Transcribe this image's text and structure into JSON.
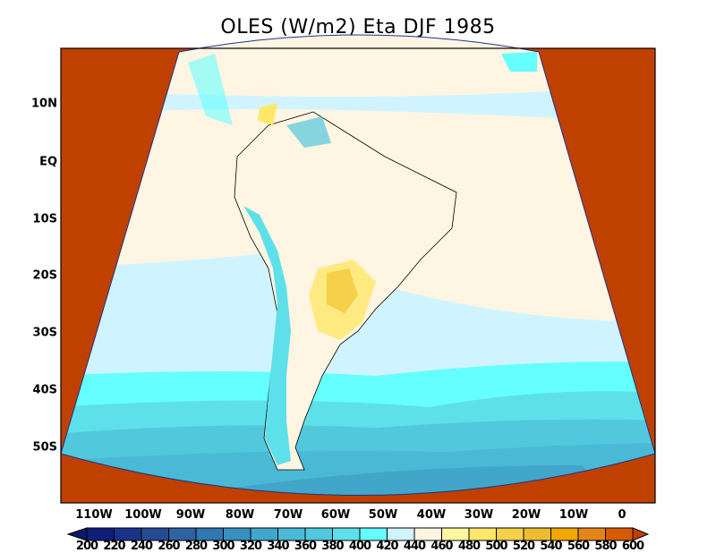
{
  "title": "OLES (W/m2) Eta DJF 1985",
  "lat_labels": [
    "10N",
    "EQ",
    "10S",
    "20S",
    "30S",
    "40S",
    "50S"
  ],
  "lon_labels": [
    "110W",
    "100W",
    "90W",
    "80W",
    "70W",
    "60W",
    "50W",
    "40W",
    "30W",
    "20W",
    "10W",
    "0"
  ],
  "colorbar": {
    "labels": [
      "200",
      "220",
      "240",
      "260",
      "280",
      "300",
      "320",
      "340",
      "360",
      "380",
      "400",
      "420",
      "440",
      "460",
      "480",
      "500",
      "520",
      "540",
      "560",
      "580",
      "600"
    ],
    "colors": [
      "#0a1a6e",
      "#0f1f78",
      "#1a3388",
      "#264b94",
      "#2e62a0",
      "#2f78b0",
      "#3890c0",
      "#41a6c9",
      "#4ab9d6",
      "#52c8dd",
      "#5ee0ea",
      "#66ffff",
      "#d0f4ff",
      "#fff5e2",
      "#fff7a0",
      "#ffe76a",
      "#f5d048",
      "#ebbc30",
      "#f0a800",
      "#e38418",
      "#d85a00",
      "#c04000"
    ]
  },
  "colors": {
    "outside": "#c04000",
    "ocean_north": "#fff5e2",
    "land": "#fff5e2"
  }
}
